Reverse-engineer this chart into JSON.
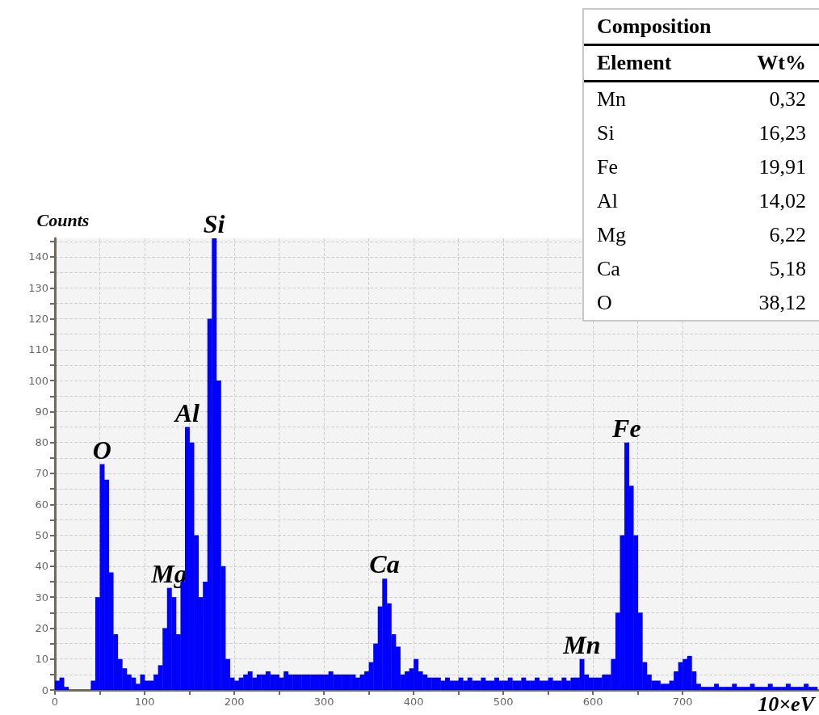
{
  "chart_data": [
    {
      "type": "histogram",
      "ylabel": "Counts",
      "xlabel": "10×eV",
      "color": "#0000ff",
      "bins": [
        0,
        5,
        10,
        15,
        20,
        25,
        30,
        35,
        40,
        45,
        50,
        55,
        60,
        65,
        70,
        75,
        80,
        85,
        90,
        95,
        100,
        105,
        110,
        115,
        120,
        125,
        130,
        135,
        140,
        145,
        150,
        155,
        160,
        165,
        170,
        175,
        180,
        185,
        190,
        195,
        200,
        205,
        210,
        215,
        220,
        225,
        230,
        235,
        240,
        245,
        250,
        255,
        260,
        265,
        270,
        275,
        280,
        285,
        290,
        295,
        300,
        305,
        310,
        315,
        320,
        325,
        330,
        335,
        340,
        345,
        350,
        355,
        360,
        365,
        370,
        375,
        380,
        385,
        390,
        395,
        400,
        405,
        410,
        415,
        420,
        425,
        430,
        435,
        440,
        445,
        450,
        455,
        460,
        465,
        470,
        475,
        480,
        485,
        490,
        495,
        500,
        505,
        510,
        515,
        520,
        525,
        530,
        535,
        540,
        545,
        550,
        555,
        560,
        565,
        570,
        575,
        580,
        585,
        590,
        595,
        600,
        605,
        610,
        615,
        620,
        625,
        630,
        635,
        640,
        645,
        650,
        655,
        660,
        665,
        670,
        675,
        680,
        685,
        690,
        695,
        700,
        705,
        710,
        715,
        720,
        725,
        730,
        735,
        740,
        745,
        750,
        755,
        760,
        765,
        770,
        775,
        780,
        785,
        790,
        795,
        800,
        805,
        810,
        815,
        820,
        825,
        830,
        835,
        840,
        845,
        850
      ],
      "values": [
        3,
        4,
        1,
        0,
        0,
        0,
        0,
        0,
        3,
        30,
        73,
        68,
        38,
        18,
        10,
        7,
        5,
        4,
        2,
        5,
        3,
        3,
        5,
        8,
        20,
        33,
        30,
        18,
        35,
        85,
        80,
        50,
        30,
        35,
        120,
        146,
        100,
        40,
        10,
        4,
        3,
        4,
        5,
        6,
        4,
        5,
        5,
        6,
        5,
        5,
        4,
        6,
        5,
        5,
        5,
        5,
        5,
        5,
        5,
        5,
        5,
        6,
        5,
        5,
        5,
        5,
        5,
        4,
        5,
        6,
        9,
        15,
        27,
        36,
        28,
        18,
        14,
        5,
        6,
        7,
        10,
        6,
        5,
        4,
        4,
        4,
        3,
        4,
        3,
        3,
        4,
        3,
        4,
        3,
        3,
        4,
        3,
        3,
        4,
        3,
        3,
        4,
        3,
        3,
        4,
        3,
        3,
        4,
        3,
        3,
        4,
        3,
        3,
        4,
        3,
        4,
        4,
        10,
        5,
        4,
        4,
        4,
        5,
        5,
        10,
        25,
        50,
        80,
        66,
        50,
        25,
        9,
        5,
        3,
        3,
        2,
        2,
        3,
        6,
        9,
        10,
        11,
        6,
        2,
        1,
        1,
        1,
        2,
        1,
        1,
        1,
        2,
        1,
        1,
        1,
        2,
        1,
        1,
        1,
        2,
        1,
        1,
        1,
        2,
        1,
        1,
        1,
        2,
        1,
        1
      ],
      "xlim": [
        0,
        852
      ],
      "ylim": [
        0,
        146
      ],
      "xticks": [
        0,
        {
          "value": 50,
          "label": null
        },
        100,
        {
          "value": 150,
          "label": null
        },
        200,
        {
          "value": 250,
          "label": null
        },
        300,
        {
          "value": 350,
          "label": null
        },
        400,
        {
          "value": 450,
          "label": null
        },
        500,
        {
          "value": 550,
          "label": null
        },
        600,
        {
          "value": 650,
          "label": null
        },
        700
      ],
      "yticks": [
        0,
        {
          "value": 5,
          "label": null
        },
        10,
        {
          "value": 15,
          "label": null
        },
        20,
        {
          "value": 25,
          "label": null
        },
        30,
        {
          "value": 35,
          "label": null
        },
        40,
        {
          "value": 45,
          "label": null
        },
        50,
        {
          "value": 55,
          "label": null
        },
        60,
        {
          "value": 65,
          "label": null
        },
        70,
        {
          "value": 75,
          "label": null
        },
        80,
        {
          "value": 85,
          "label": null
        },
        90,
        {
          "value": 95,
          "label": null
        },
        100,
        {
          "value": 105,
          "label": null
        },
        110,
        {
          "value": 115,
          "label": null
        },
        120,
        {
          "value": 125,
          "label": null
        },
        130,
        {
          "value": 135,
          "label": null
        },
        140,
        {
          "value": 145,
          "label": null
        }
      ],
      "grid": true,
      "annotations": [
        {
          "text": "O",
          "x": 52.5,
          "y": 73
        },
        {
          "text": "Mg",
          "x": 127.5,
          "y": 33
        },
        {
          "text": "Al",
          "x": 147.5,
          "y": 85
        },
        {
          "text": "Si",
          "x": 177.5,
          "y": 146
        },
        {
          "text": "Ca",
          "x": 367.5,
          "y": 36
        },
        {
          "text": "Mn",
          "x": 587.5,
          "y": 10
        },
        {
          "text": "Fe",
          "x": 637.5,
          "y": 80
        }
      ]
    },
    {
      "type": "other",
      "title": "Composition",
      "annotations": [
        "Element",
        "Wt%"
      ],
      "categories": [
        "Mn",
        "Si",
        "Fe",
        "Al",
        "Mg",
        "Ca",
        "O"
      ],
      "values": [
        0.32,
        16.23,
        19.91,
        14.02,
        6.22,
        5.18,
        38.12
      ],
      "value_labels": [
        "0,32",
        "16,23",
        "19,91",
        "14,02",
        "6,22",
        "5,18",
        "38,12"
      ]
    }
  ]
}
